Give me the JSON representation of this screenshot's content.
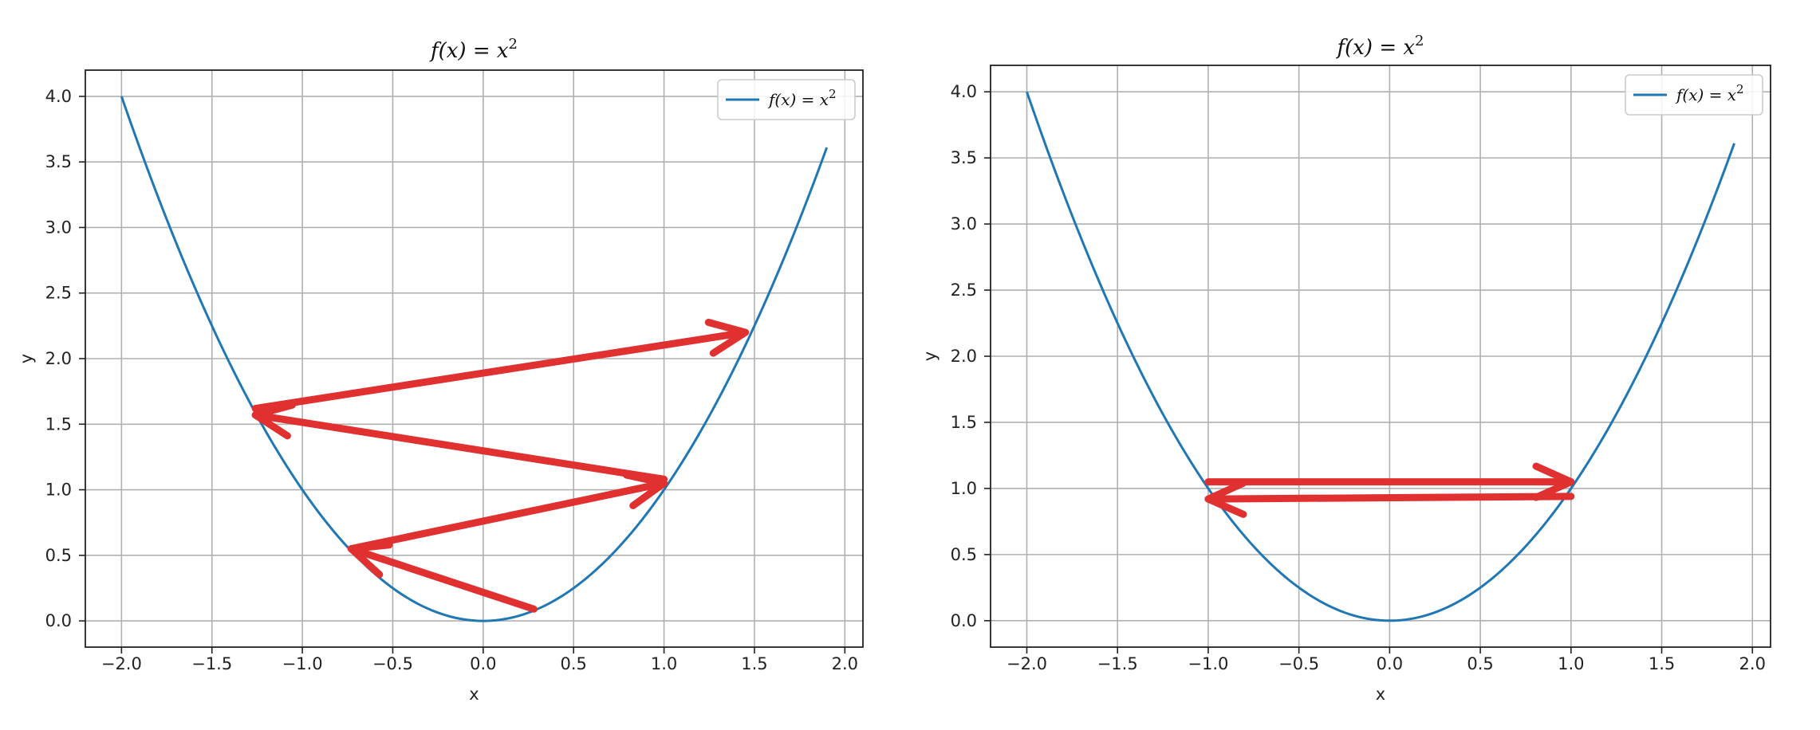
{
  "chart_data": [
    {
      "type": "line",
      "title": {
        "lhs": "f(x) = x",
        "sup": "2"
      },
      "xlabel": "x",
      "ylabel": "y",
      "xlim": [
        -2.2,
        2.1
      ],
      "ylim": [
        -0.2,
        4.2
      ],
      "grid": true,
      "legend_position": "top-right",
      "xticks": [
        -2.0,
        -1.5,
        -1.0,
        -0.5,
        0.0,
        0.5,
        1.0,
        1.5,
        2.0
      ],
      "xtick_labels": [
        "−2.0",
        "−1.5",
        "−1.0",
        "−0.5",
        "0.0",
        "0.5",
        "1.0",
        "1.5",
        "2.0"
      ],
      "yticks": [
        0.0,
        0.5,
        1.0,
        1.5,
        2.0,
        2.5,
        3.0,
        3.5,
        4.0
      ],
      "ytick_labels": [
        "0.0",
        "0.5",
        "1.0",
        "1.5",
        "2.0",
        "2.5",
        "3.0",
        "3.5",
        "4.0"
      ],
      "series": [
        {
          "name": {
            "lhs": "f(x) = x",
            "sup": "2"
          },
          "color": "#1f77b4",
          "function": "x^2",
          "x_range": [
            -2.0,
            1.9
          ]
        }
      ],
      "annotations": {
        "type": "arrows",
        "color": "#e03030",
        "description": "oscillating gradient steps (diverging)",
        "arrows": [
          {
            "from": [
              0.28,
              0.09
            ],
            "to": [
              -0.73,
              0.55
            ]
          },
          {
            "from": [
              -0.73,
              0.55
            ],
            "to": [
              1.0,
              1.05
            ]
          },
          {
            "from": [
              1.0,
              1.08
            ],
            "to": [
              -1.26,
              1.57
            ]
          },
          {
            "from": [
              -1.26,
              1.62
            ],
            "to": [
              1.45,
              2.2
            ]
          }
        ]
      }
    },
    {
      "type": "line",
      "title": {
        "lhs": "f(x) = x",
        "sup": "2"
      },
      "xlabel": "x",
      "ylabel": "y",
      "xlim": [
        -2.2,
        2.1
      ],
      "ylim": [
        -0.2,
        4.2
      ],
      "grid": true,
      "legend_position": "top-right",
      "xticks": [
        -2.0,
        -1.5,
        -1.0,
        -0.5,
        0.0,
        0.5,
        1.0,
        1.5,
        2.0
      ],
      "xtick_labels": [
        "−2.0",
        "−1.5",
        "−1.0",
        "−0.5",
        "0.0",
        "0.5",
        "1.0",
        "1.5",
        "2.0"
      ],
      "yticks": [
        0.0,
        0.5,
        1.0,
        1.5,
        2.0,
        2.5,
        3.0,
        3.5,
        4.0
      ],
      "ytick_labels": [
        "0.0",
        "0.5",
        "1.0",
        "1.5",
        "2.0",
        "2.5",
        "3.0",
        "3.5",
        "4.0"
      ],
      "series": [
        {
          "name": {
            "lhs": "f(x) = x",
            "sup": "2"
          },
          "color": "#1f77b4",
          "function": "x^2",
          "x_range": [
            -2.0,
            1.9
          ]
        }
      ],
      "annotations": {
        "type": "arrows",
        "color": "#e03030",
        "description": "oscillating gradient steps (bouncing between x = -1 and x = 1)",
        "arrows": [
          {
            "from": [
              -1.0,
              1.05
            ],
            "to": [
              1.0,
              1.05
            ]
          },
          {
            "from": [
              1.0,
              0.94
            ],
            "to": [
              -1.0,
              0.92
            ]
          }
        ]
      }
    }
  ]
}
